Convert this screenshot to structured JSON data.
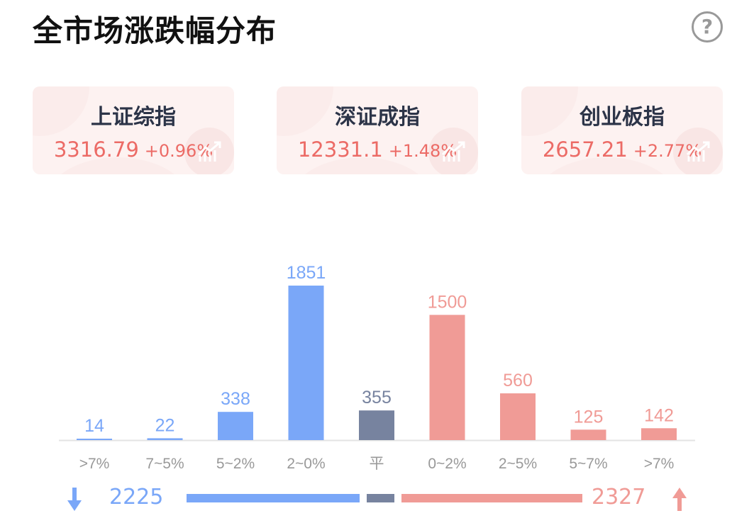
{
  "title": "全市场涨跌幅分布",
  "help_icon": "question-circle-icon",
  "indices": [
    {
      "name": "上证综指",
      "value": "3316.79",
      "change": "+0.96%"
    },
    {
      "name": "深证成指",
      "value": "12331.1",
      "change": "+1.48%"
    },
    {
      "name": "创业板指",
      "value": "2657.21",
      "change": "+2.77%"
    }
  ],
  "colors": {
    "down": "#7aa7f8",
    "flat": "#77839f",
    "up": "#f09b96",
    "up_text": "#ec6b66"
  },
  "chart_data": {
    "type": "bar",
    "categories": [
      ">7%",
      "7~5%",
      "5~2%",
      "2~0%",
      "平",
      "0~2%",
      "2~5%",
      "5~7%",
      ">7%"
    ],
    "values": [
      14,
      22,
      338,
      1851,
      355,
      1500,
      560,
      125,
      142
    ],
    "bar_colors": [
      "down",
      "down",
      "down",
      "down",
      "flat",
      "up",
      "up",
      "up",
      "up"
    ],
    "xlabel": "",
    "ylabel": ""
  },
  "summary": {
    "down_count": "2225",
    "flat_count": 355,
    "up_count": "2327",
    "down_value": 2225,
    "up_value": 2327
  }
}
